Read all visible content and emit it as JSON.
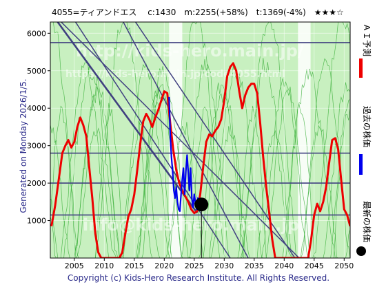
{
  "header": {
    "title": "4055=ティアンドエス　 c:1430　m:2255(+58%)　t:1369(-4%)　★★★☆"
  },
  "side_left": "Generated on Monday 2026/1/5.",
  "legend": {
    "ai": "ＡＩ予測",
    "past": "過去の株価",
    "latest": "最新の株価"
  },
  "watermarks": {
    "url1": "http://kids-hero.main.jp/",
    "url2": "https://kids-hero.main.jp/code4055.html",
    "mail": "info@kids-hero.main.jp"
  },
  "footer": "Copyright (c) Kids-Hero Research Institute. All Rights Reserved.",
  "colors": {
    "background": "#ffffff",
    "plot_bg": "#c8f0c0",
    "ai": "#ee0000",
    "past": "#0000ee",
    "trend": "#404080",
    "latest": "#000000",
    "green_lines": "#2eaa2e"
  },
  "chart_data": {
    "type": "line",
    "title": "4055=ティアンドエス",
    "xlim": [
      2001,
      2051
    ],
    "ylim": [
      0,
      6300
    ],
    "x_ticks": [
      2005,
      2010,
      2015,
      2020,
      2025,
      2030,
      2035,
      2040,
      2045,
      2050
    ],
    "y_ticks": [
      1000,
      2000,
      3000,
      4000,
      5000,
      6000
    ],
    "grid": true,
    "current": 1430,
    "m": 2255,
    "m_pct": "+58%",
    "t": 1369,
    "t_pct": "-4%",
    "rating": "★★★☆",
    "horizontal_levels": [
      1150,
      2000,
      2800,
      5750
    ],
    "latest_point": {
      "x": 2026.2,
      "y": 1430
    },
    "latest_vline": {
      "x": 2026.2,
      "y_top": 1430
    },
    "trend_lines": [
      {
        "x1": 2002.5,
        "y1": 6350,
        "x2": 2042.5,
        "y2": 0
      },
      {
        "x1": 2005.0,
        "y1": 6350,
        "x2": 2031.0,
        "y2": 0
      },
      {
        "x1": 2015.0,
        "y1": 6350,
        "x2": 2041.8,
        "y2": 0
      },
      {
        "x1": 2013.0,
        "y1": 6350,
        "x2": 2034.0,
        "y2": 0
      },
      {
        "x1": 2002.0,
        "y1": 6350,
        "x2": 2025.5,
        "y2": 1200
      }
    ],
    "light_bands": [
      [
        2020.8,
        2023.0
      ],
      [
        2042.3,
        2044.4
      ]
    ],
    "series": [
      {
        "name": "ＡＩ予測",
        "color": "#ee0000",
        "points": [
          [
            2001.2,
            850
          ],
          [
            2001.8,
            1400
          ],
          [
            2002.5,
            2200
          ],
          [
            2003.0,
            2800
          ],
          [
            2003.5,
            3000
          ],
          [
            2004.0,
            3150
          ],
          [
            2004.5,
            2950
          ],
          [
            2005.0,
            3100
          ],
          [
            2005.5,
            3500
          ],
          [
            2006.0,
            3750
          ],
          [
            2006.5,
            3550
          ],
          [
            2007.0,
            3250
          ],
          [
            2007.5,
            2400
          ],
          [
            2008.0,
            1600
          ],
          [
            2008.5,
            650
          ],
          [
            2009.0,
            150
          ],
          [
            2009.5,
            0
          ],
          [
            2012.5,
            0
          ],
          [
            2013.0,
            150
          ],
          [
            2013.5,
            650
          ],
          [
            2014.0,
            1100
          ],
          [
            2014.5,
            1300
          ],
          [
            2015.0,
            1700
          ],
          [
            2015.5,
            2350
          ],
          [
            2016.0,
            3050
          ],
          [
            2016.5,
            3650
          ],
          [
            2017.0,
            3850
          ],
          [
            2017.5,
            3700
          ],
          [
            2018.0,
            3500
          ],
          [
            2018.5,
            3750
          ],
          [
            2019.0,
            3950
          ],
          [
            2019.5,
            4200
          ],
          [
            2020.0,
            4450
          ],
          [
            2020.5,
            4400
          ],
          [
            2021.0,
            3600
          ],
          [
            2021.5,
            2900
          ],
          [
            2022.0,
            2350
          ],
          [
            2022.5,
            2000
          ],
          [
            2023.0,
            1800
          ],
          [
            2023.5,
            1650
          ],
          [
            2024.0,
            1500
          ],
          [
            2024.5,
            1300
          ],
          [
            2025.0,
            1200
          ],
          [
            2025.5,
            1250
          ],
          [
            2026.0,
            1700
          ],
          [
            2026.5,
            2450
          ],
          [
            2027.0,
            3100
          ],
          [
            2027.5,
            3300
          ],
          [
            2028.0,
            3250
          ],
          [
            2028.5,
            3400
          ],
          [
            2029.0,
            3500
          ],
          [
            2029.5,
            3700
          ],
          [
            2030.0,
            4200
          ],
          [
            2030.5,
            4850
          ],
          [
            2031.0,
            5100
          ],
          [
            2031.5,
            5200
          ],
          [
            2032.0,
            5000
          ],
          [
            2032.5,
            4450
          ],
          [
            2033.0,
            4000
          ],
          [
            2033.5,
            4350
          ],
          [
            2034.0,
            4550
          ],
          [
            2034.5,
            4650
          ],
          [
            2035.0,
            4650
          ],
          [
            2035.5,
            4400
          ],
          [
            2036.0,
            3600
          ],
          [
            2036.5,
            2700
          ],
          [
            2037.0,
            1900
          ],
          [
            2037.5,
            1200
          ],
          [
            2038.0,
            500
          ],
          [
            2038.5,
            0
          ],
          [
            2044.0,
            0
          ],
          [
            2044.5,
            500
          ],
          [
            2045.0,
            1150
          ],
          [
            2045.5,
            1450
          ],
          [
            2046.0,
            1250
          ],
          [
            2046.5,
            1500
          ],
          [
            2047.0,
            1900
          ],
          [
            2047.5,
            2550
          ],
          [
            2048.0,
            3150
          ],
          [
            2048.5,
            3200
          ],
          [
            2049.0,
            2900
          ],
          [
            2049.5,
            2100
          ],
          [
            2050.0,
            1300
          ],
          [
            2050.5,
            1150
          ],
          [
            2051.0,
            850
          ]
        ]
      },
      {
        "name": "過去の株価",
        "color": "#0000ee",
        "points": [
          [
            2020.8,
            4300
          ],
          [
            2021.0,
            3300
          ],
          [
            2021.2,
            2700
          ],
          [
            2021.4,
            2300
          ],
          [
            2021.6,
            1800
          ],
          [
            2021.8,
            1600
          ],
          [
            2022.0,
            1900
          ],
          [
            2022.2,
            1500
          ],
          [
            2022.4,
            1300
          ],
          [
            2022.6,
            1250
          ],
          [
            2022.8,
            1700
          ],
          [
            2023.0,
            2100
          ],
          [
            2023.2,
            2400
          ],
          [
            2023.4,
            1700
          ],
          [
            2023.6,
            2300
          ],
          [
            2023.8,
            2750
          ],
          [
            2024.0,
            2300
          ],
          [
            2024.2,
            1800
          ],
          [
            2024.4,
            2400
          ],
          [
            2024.6,
            1600
          ],
          [
            2024.8,
            1350
          ],
          [
            2025.0,
            1700
          ],
          [
            2025.2,
            1500
          ],
          [
            2025.4,
            1300
          ],
          [
            2025.6,
            1600
          ],
          [
            2025.8,
            1450
          ],
          [
            2026.0,
            1430
          ]
        ]
      }
    ]
  }
}
